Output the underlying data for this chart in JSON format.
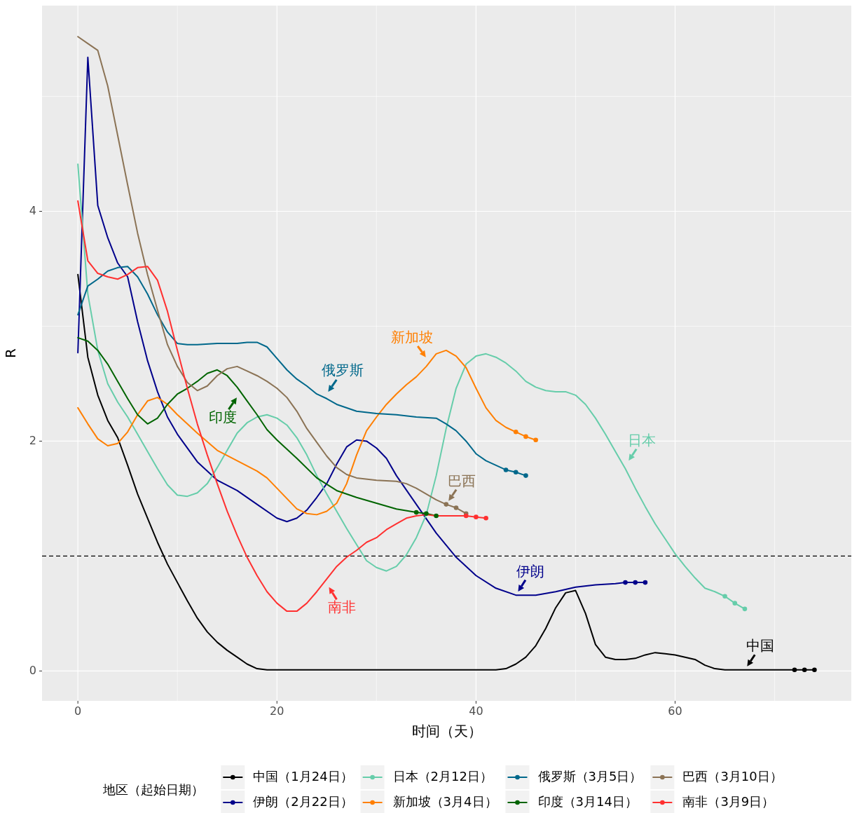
{
  "chart_data": {
    "type": "line",
    "xlabel": "时间（天）",
    "ylabel": "R",
    "legend_title": "地区（起始日期）",
    "legend": "bottom",
    "grid": true,
    "line_style": "solid",
    "xlim": [
      -3.6,
      77.7
    ],
    "ylim": [
      -0.26,
      5.79
    ],
    "xticks": [
      0,
      20,
      40,
      60
    ],
    "yticks": [
      0,
      2,
      4
    ],
    "ref_lines": [
      {
        "axis": "y",
        "value": 1,
        "color": "#000000",
        "line_style": "dashed"
      }
    ],
    "annotations": [
      {
        "text": "中国",
        "x": 67,
        "y": 0.01
      },
      {
        "text": "伊朗",
        "x": 44,
        "y": 0.66
      },
      {
        "text": "日本",
        "x": 55.1,
        "y": 1.8
      },
      {
        "text": "新加坡",
        "x": 35.2,
        "y": 2.7
      },
      {
        "text": "俄罗斯",
        "x": 24.9,
        "y": 2.4
      },
      {
        "text": "印度",
        "x": 16.2,
        "y": 2.41
      },
      {
        "text": "巴西",
        "x": 37,
        "y": 1.45
      },
      {
        "text": "南非",
        "x": 25.0,
        "y": 0.76
      }
    ],
    "series": [
      {
        "name": "中国（1月24日）",
        "color": "#000000",
        "x": [
          0,
          1,
          2,
          3,
          4,
          5,
          6,
          7,
          8,
          9,
          10,
          11,
          12,
          13,
          14,
          15,
          16,
          17,
          18,
          19,
          42,
          43,
          44,
          45,
          46,
          47,
          48,
          49,
          50,
          51,
          52,
          53,
          54,
          55,
          56,
          57,
          58,
          59,
          60,
          61,
          62,
          63,
          64,
          65,
          72,
          73,
          74
        ],
        "values": [
          3.45,
          2.73,
          2.4,
          2.18,
          2.03,
          1.79,
          1.54,
          1.33,
          1.12,
          0.93,
          0.77,
          0.61,
          0.46,
          0.34,
          0.25,
          0.18,
          0.12,
          0.06,
          0.02,
          0.01,
          0.01,
          0.02,
          0.06,
          0.12,
          0.22,
          0.37,
          0.55,
          0.68,
          0.7,
          0.5,
          0.23,
          0.12,
          0.1,
          0.1,
          0.11,
          0.14,
          0.16,
          0.15,
          0.14,
          0.12,
          0.1,
          0.05,
          0.02,
          0.01,
          0.01,
          0.01,
          0.01
        ]
      },
      {
        "name": "伊朗（2月22日）",
        "color": "#00008b",
        "x": [
          0,
          1,
          2,
          3,
          4,
          5,
          6,
          7,
          8,
          9,
          10,
          12,
          14,
          16,
          18,
          20,
          21,
          22,
          23,
          24,
          25,
          26,
          27,
          28,
          29,
          30,
          31,
          32,
          34,
          36,
          38,
          40,
          42,
          44,
          46,
          48,
          50,
          52,
          54,
          55,
          56,
          57
        ],
        "values": [
          2.77,
          5.34,
          4.05,
          3.77,
          3.55,
          3.43,
          3.04,
          2.7,
          2.43,
          2.21,
          2.06,
          1.82,
          1.66,
          1.57,
          1.45,
          1.33,
          1.3,
          1.33,
          1.4,
          1.51,
          1.63,
          1.8,
          1.95,
          2.01,
          2.0,
          1.94,
          1.85,
          1.7,
          1.45,
          1.2,
          0.99,
          0.83,
          0.72,
          0.66,
          0.66,
          0.69,
          0.73,
          0.75,
          0.76,
          0.77,
          0.77,
          0.77
        ]
      },
      {
        "name": "日本（2月12日）",
        "color": "#66cdaa",
        "x": [
          0,
          1,
          2,
          3,
          4,
          5,
          6,
          7,
          8,
          9,
          10,
          11,
          12,
          13,
          14,
          15,
          16,
          17,
          18,
          19,
          20,
          21,
          22,
          23,
          24,
          25,
          26,
          27,
          28,
          29,
          30,
          31,
          32,
          33,
          34,
          35,
          36,
          37,
          38,
          39,
          40,
          41,
          42,
          43,
          44,
          45,
          46,
          47,
          48,
          49,
          50,
          51,
          52,
          53,
          54,
          55,
          56,
          57,
          58,
          59,
          60,
          61,
          62,
          63,
          64,
          65,
          66,
          67
        ],
        "values": [
          4.41,
          3.28,
          2.79,
          2.5,
          2.34,
          2.21,
          2.06,
          1.91,
          1.76,
          1.62,
          1.53,
          1.52,
          1.55,
          1.63,
          1.77,
          1.92,
          2.07,
          2.16,
          2.21,
          2.23,
          2.2,
          2.14,
          2.03,
          1.88,
          1.7,
          1.54,
          1.39,
          1.24,
          1.1,
          0.96,
          0.9,
          0.87,
          0.91,
          1.01,
          1.16,
          1.36,
          1.7,
          2.11,
          2.46,
          2.67,
          2.74,
          2.76,
          2.73,
          2.68,
          2.61,
          2.52,
          2.47,
          2.44,
          2.43,
          2.43,
          2.4,
          2.32,
          2.2,
          2.06,
          1.91,
          1.76,
          1.59,
          1.43,
          1.28,
          1.15,
          1.02,
          0.91,
          0.81,
          0.72,
          0.69,
          0.65,
          0.59,
          0.54
        ]
      },
      {
        "name": "新加坡（3月4日）",
        "color": "#ff7f00",
        "x": [
          0,
          1,
          2,
          3,
          4,
          5,
          6,
          7,
          8,
          9,
          10,
          12,
          14,
          16,
          18,
          19,
          20,
          21,
          22,
          23,
          24,
          25,
          26,
          27,
          28,
          29,
          30,
          31,
          32,
          33,
          34,
          35,
          36,
          37,
          38,
          39,
          40,
          41,
          42,
          43,
          44,
          45,
          46
        ],
        "values": [
          2.29,
          2.15,
          2.02,
          1.96,
          1.98,
          2.08,
          2.23,
          2.35,
          2.38,
          2.32,
          2.23,
          2.07,
          1.92,
          1.83,
          1.74,
          1.68,
          1.59,
          1.5,
          1.41,
          1.37,
          1.36,
          1.39,
          1.46,
          1.63,
          1.88,
          2.09,
          2.21,
          2.32,
          2.41,
          2.49,
          2.56,
          2.65,
          2.76,
          2.79,
          2.74,
          2.64,
          2.46,
          2.29,
          2.18,
          2.12,
          2.08,
          2.04,
          2.01
        ]
      },
      {
        "name": "俄罗斯（3月5日）",
        "color": "#00688b",
        "x": [
          0,
          1,
          2,
          3,
          4,
          5,
          6,
          7,
          8,
          9,
          10,
          11,
          12,
          14,
          16,
          17,
          18,
          19,
          20,
          21,
          22,
          23,
          24,
          25,
          26,
          28,
          30,
          32,
          34,
          36,
          37,
          38,
          39,
          40,
          41,
          42,
          43,
          44,
          45
        ],
        "values": [
          3.1,
          3.35,
          3.41,
          3.48,
          3.51,
          3.52,
          3.43,
          3.28,
          3.1,
          2.95,
          2.85,
          2.84,
          2.84,
          2.85,
          2.85,
          2.86,
          2.86,
          2.82,
          2.72,
          2.62,
          2.54,
          2.48,
          2.41,
          2.37,
          2.32,
          2.26,
          2.24,
          2.23,
          2.21,
          2.2,
          2.15,
          2.09,
          2.0,
          1.89,
          1.83,
          1.79,
          1.75,
          1.73,
          1.7
        ]
      },
      {
        "name": "印度（3月14日）",
        "color": "#006400",
        "x": [
          0,
          1,
          2,
          3,
          4,
          5,
          6,
          7,
          8,
          9,
          10,
          11,
          12,
          13,
          14,
          15,
          16,
          17,
          18,
          19,
          20,
          22,
          24,
          26,
          28,
          30,
          32,
          34,
          35,
          36
        ],
        "values": [
          2.9,
          2.87,
          2.79,
          2.67,
          2.52,
          2.37,
          2.23,
          2.15,
          2.2,
          2.32,
          2.41,
          2.46,
          2.52,
          2.59,
          2.62,
          2.57,
          2.47,
          2.35,
          2.23,
          2.1,
          2.01,
          1.85,
          1.68,
          1.57,
          1.51,
          1.46,
          1.41,
          1.38,
          1.37,
          1.35
        ]
      },
      {
        "name": "巴西（3月10日）",
        "color": "#8b7355",
        "x": [
          0,
          1,
          2,
          3,
          4,
          5,
          6,
          7,
          8,
          9,
          10,
          11,
          12,
          13,
          14,
          15,
          16,
          17,
          18,
          19,
          20,
          21,
          22,
          23,
          24,
          25,
          26,
          27,
          28,
          30,
          32,
          33,
          34,
          35,
          36,
          37,
          38,
          39
        ],
        "values": [
          5.52,
          5.46,
          5.4,
          5.09,
          4.66,
          4.23,
          3.81,
          3.45,
          3.14,
          2.84,
          2.65,
          2.51,
          2.44,
          2.48,
          2.57,
          2.63,
          2.65,
          2.61,
          2.57,
          2.52,
          2.46,
          2.38,
          2.26,
          2.11,
          1.99,
          1.87,
          1.77,
          1.71,
          1.68,
          1.66,
          1.65,
          1.63,
          1.59,
          1.54,
          1.49,
          1.45,
          1.42,
          1.37
        ]
      },
      {
        "name": "南非（3月9日）",
        "color": "#ff3030",
        "x": [
          0,
          1,
          2,
          3,
          4,
          5,
          6,
          7,
          8,
          9,
          10,
          11,
          12,
          13,
          14,
          15,
          16,
          17,
          18,
          19,
          20,
          21,
          22,
          23,
          24,
          25,
          26,
          27,
          28,
          29,
          30,
          31,
          32,
          33,
          34,
          35,
          36,
          37,
          38,
          39,
          40,
          41
        ],
        "values": [
          4.09,
          3.57,
          3.46,
          3.43,
          3.41,
          3.45,
          3.51,
          3.52,
          3.4,
          3.13,
          2.79,
          2.46,
          2.15,
          1.88,
          1.63,
          1.39,
          1.18,
          0.99,
          0.83,
          0.69,
          0.59,
          0.52,
          0.52,
          0.59,
          0.69,
          0.8,
          0.91,
          0.99,
          1.05,
          1.12,
          1.16,
          1.23,
          1.28,
          1.33,
          1.35,
          1.36,
          1.35,
          1.35,
          1.35,
          1.35,
          1.34,
          1.33
        ]
      },
      {
        "type": "scatter",
        "marker": "circle",
        "color": "#000000",
        "x": [
          72,
          73,
          74
        ],
        "values": [
          0.01,
          0.01,
          0.01
        ]
      },
      {
        "type": "scatter",
        "marker": "circle",
        "color": "#00008b",
        "x": [
          55,
          56,
          57
        ],
        "values": [
          0.77,
          0.77,
          0.77
        ]
      },
      {
        "type": "scatter",
        "marker": "circle",
        "color": "#66cdaa",
        "x": [
          65,
          66,
          67
        ],
        "values": [
          0.65,
          0.59,
          0.54
        ]
      },
      {
        "type": "scatter",
        "marker": "circle",
        "color": "#ff7f00",
        "x": [
          44,
          45,
          46
        ],
        "values": [
          2.08,
          2.04,
          2.01
        ]
      },
      {
        "type": "scatter",
        "marker": "circle",
        "color": "#00688b",
        "x": [
          43,
          44,
          45
        ],
        "values": [
          1.75,
          1.73,
          1.7
        ]
      },
      {
        "type": "scatter",
        "marker": "circle",
        "color": "#006400",
        "x": [
          34,
          35,
          36
        ],
        "values": [
          1.38,
          1.37,
          1.35
        ]
      },
      {
        "type": "scatter",
        "marker": "circle",
        "color": "#8b7355",
        "x": [
          37,
          38,
          39
        ],
        "values": [
          1.45,
          1.42,
          1.37
        ]
      },
      {
        "type": "scatter",
        "marker": "circle",
        "color": "#ff3030",
        "x": [
          39,
          40,
          41
        ],
        "values": [
          1.35,
          1.34,
          1.33
        ]
      }
    ]
  }
}
